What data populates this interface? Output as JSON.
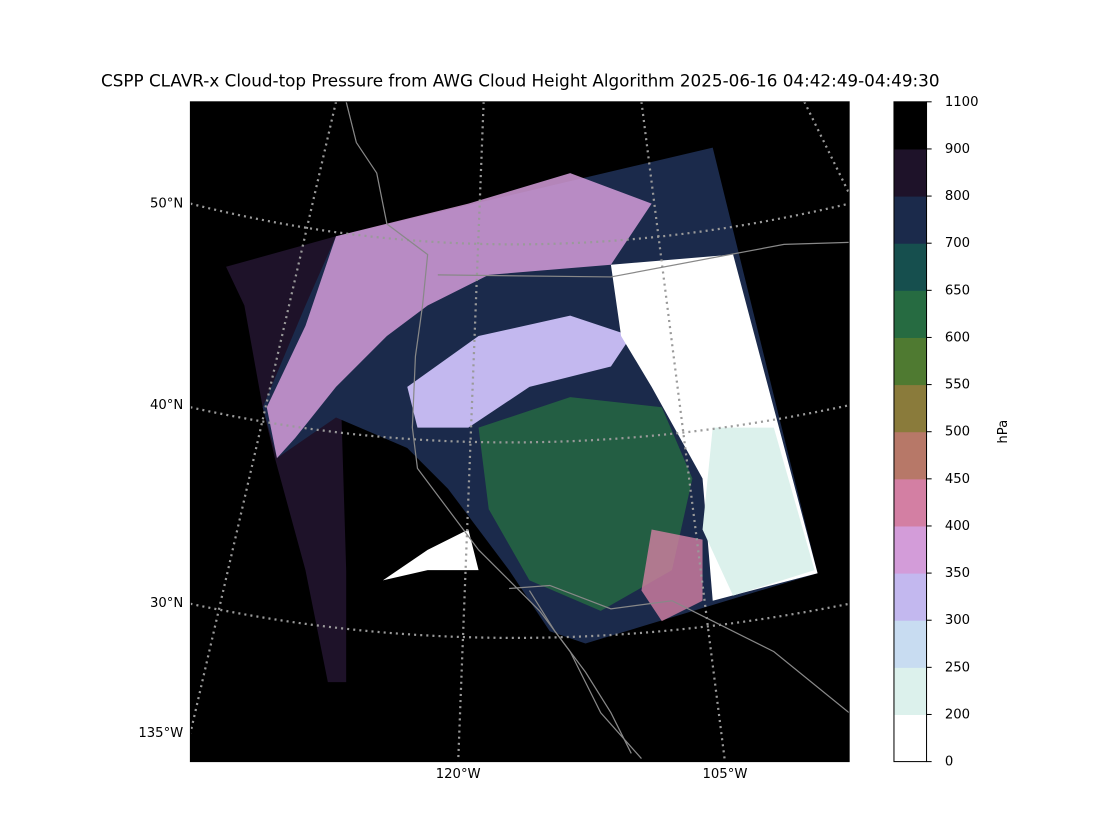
{
  "title": "CSPP CLAVR-x Cloud-top Pressure from AWG Cloud Height Algorithm 2025-06-16 04:42:49-04:49:30",
  "map": {
    "lat_labels": [
      "50°N",
      "40°N",
      "30°N"
    ],
    "lon_labels": [
      "135°W",
      "120°W",
      "105°W"
    ]
  },
  "colorbar": {
    "label": "hPa",
    "ticks": [
      0,
      200,
      250,
      300,
      350,
      400,
      450,
      500,
      550,
      600,
      650,
      700,
      800,
      900,
      1100
    ],
    "colors": [
      "#ffffff",
      "#dcf1ec",
      "#c8dcf1",
      "#c3b8ef",
      "#d39cd9",
      "#d37fa3",
      "#b77868",
      "#8a7b3b",
      "#4f7a31",
      "#266b41",
      "#164f4e",
      "#1b2a4b",
      "#1e1229",
      "#000000"
    ]
  }
}
